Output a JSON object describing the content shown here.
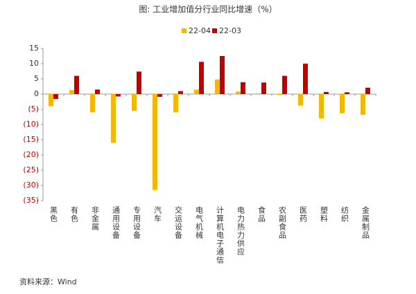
{
  "chart_data": {
    "type": "bar",
    "title": "图:  工业增加值分行业同比增速（%）",
    "source": "资料来源：Wind",
    "categories": [
      "黑色",
      "有色",
      "非金属",
      "通用设备",
      "专用设备",
      "汽车",
      "交运设备",
      "电气机械",
      "计算机电子通信",
      "电力热力供应",
      "食品",
      "农副食品",
      "医药",
      "塑料",
      "纺织",
      "金属制品"
    ],
    "series": [
      {
        "name": "22-04",
        "color": "#f5b800",
        "values": [
          -4,
          1.3,
          -6,
          -16,
          -5.5,
          -31.5,
          -6,
          1.5,
          4.8,
          0.8,
          0.2,
          -0.3,
          -3.8,
          -8,
          -6.3,
          -6.8
        ]
      },
      {
        "name": "22-03",
        "color": "#c00000",
        "values": [
          -1.6,
          6,
          1.5,
          -0.8,
          7.4,
          -0.9,
          1,
          10.6,
          12.5,
          3.9,
          3.8,
          6,
          10,
          0.7,
          0.6,
          2.1
        ]
      }
    ],
    "ylim": [
      -35,
      15
    ],
    "yticks": [
      {
        "value": -35,
        "label": "(35)"
      },
      {
        "value": -30,
        "label": "(30)"
      },
      {
        "value": -25,
        "label": "(25)"
      },
      {
        "value": -20,
        "label": "(20)"
      },
      {
        "value": -15,
        "label": "(15)"
      },
      {
        "value": -10,
        "label": "(10)"
      },
      {
        "value": -5,
        "label": "(5)"
      },
      0,
      5,
      10,
      15
    ],
    "grid": false
  }
}
